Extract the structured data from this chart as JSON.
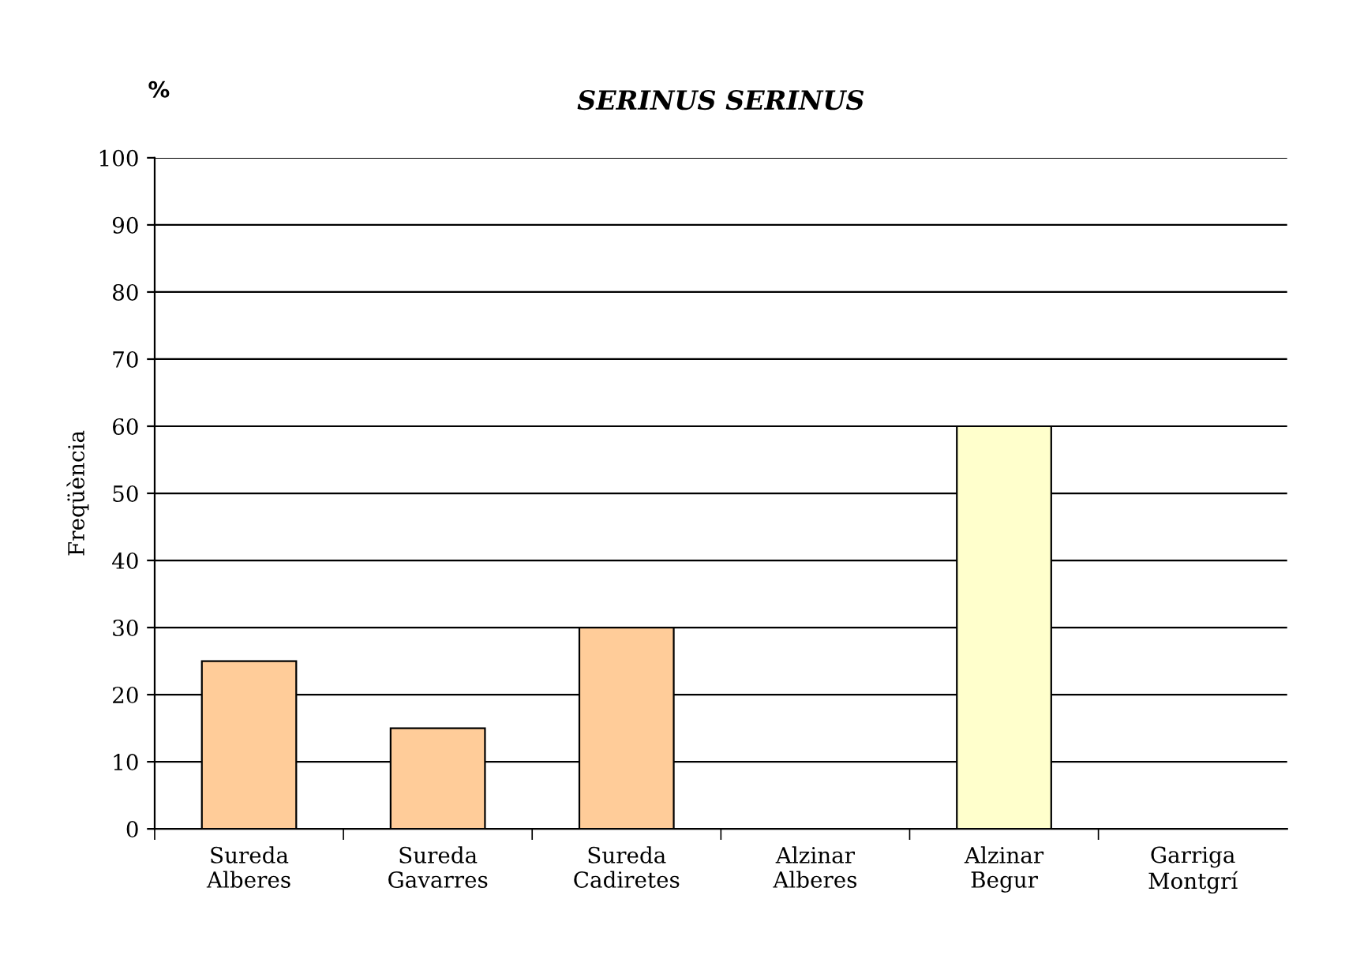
{
  "chart_data": {
    "type": "bar",
    "title": "SERINUS SERINUS",
    "ylabel": "Freqüència",
    "annotations": [
      "%"
    ],
    "categories": [
      "Sureda\nAlberes",
      "Sureda\nGavarres",
      "Sureda\nCadiretes",
      "Alzinar\nAlberes",
      "Alzinar\nBegur",
      "Garriga\nMontgrí"
    ],
    "values": [
      25,
      15,
      30,
      0,
      60,
      0
    ],
    "colors": [
      "#ffcc99",
      "#ffcc99",
      "#ffcc99",
      "#ffcc99",
      "#ffffcc",
      "#ffcc99"
    ],
    "ylim": [
      0,
      100
    ],
    "yticks": [
      0,
      10,
      20,
      30,
      40,
      50,
      60,
      70,
      80,
      90,
      100
    ],
    "grid": "y",
    "legend": false
  }
}
